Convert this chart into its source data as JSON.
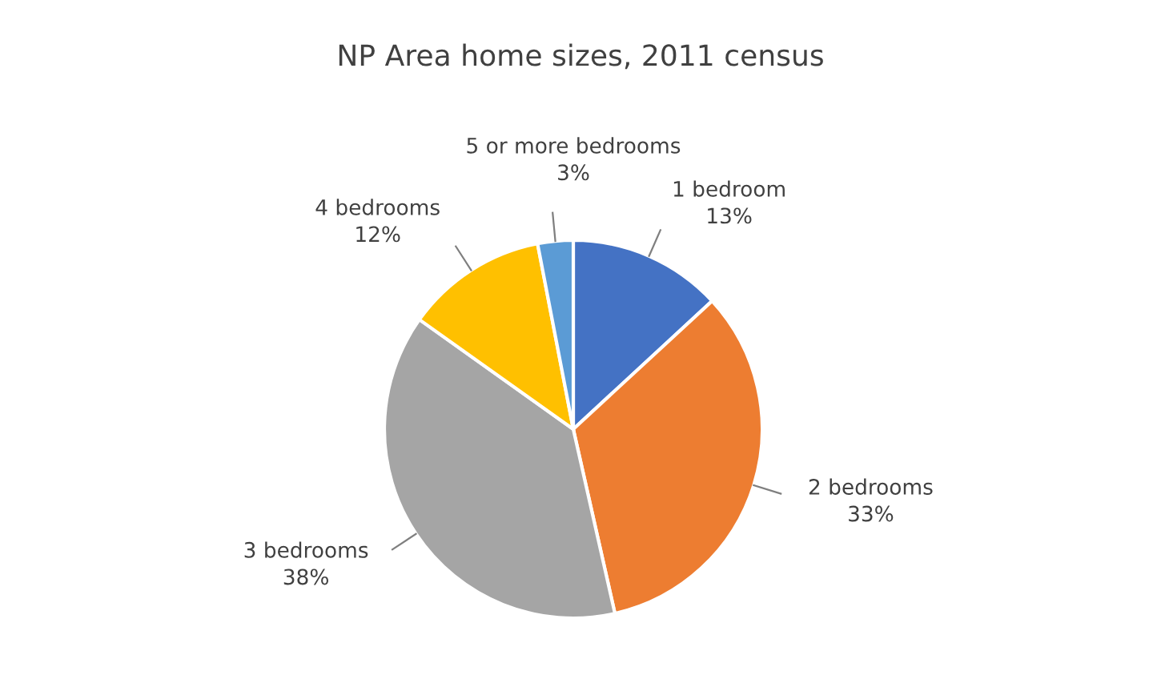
{
  "chart_data": {
    "type": "pie",
    "title": "NP Area home sizes, 2011 census",
    "categories": [
      "1 bedroom",
      "2 bedrooms",
      "3 bedrooms",
      "4 bedrooms",
      "5 or more bedrooms"
    ],
    "values": [
      13,
      33,
      38,
      12,
      3
    ],
    "value_labels": [
      "13%",
      "33%",
      "38%",
      "12%",
      "3%"
    ],
    "colors": [
      "#4472c4",
      "#ed7d31",
      "#a5a5a5",
      "#ffc000",
      "#5b9bd5"
    ],
    "legend": false
  }
}
